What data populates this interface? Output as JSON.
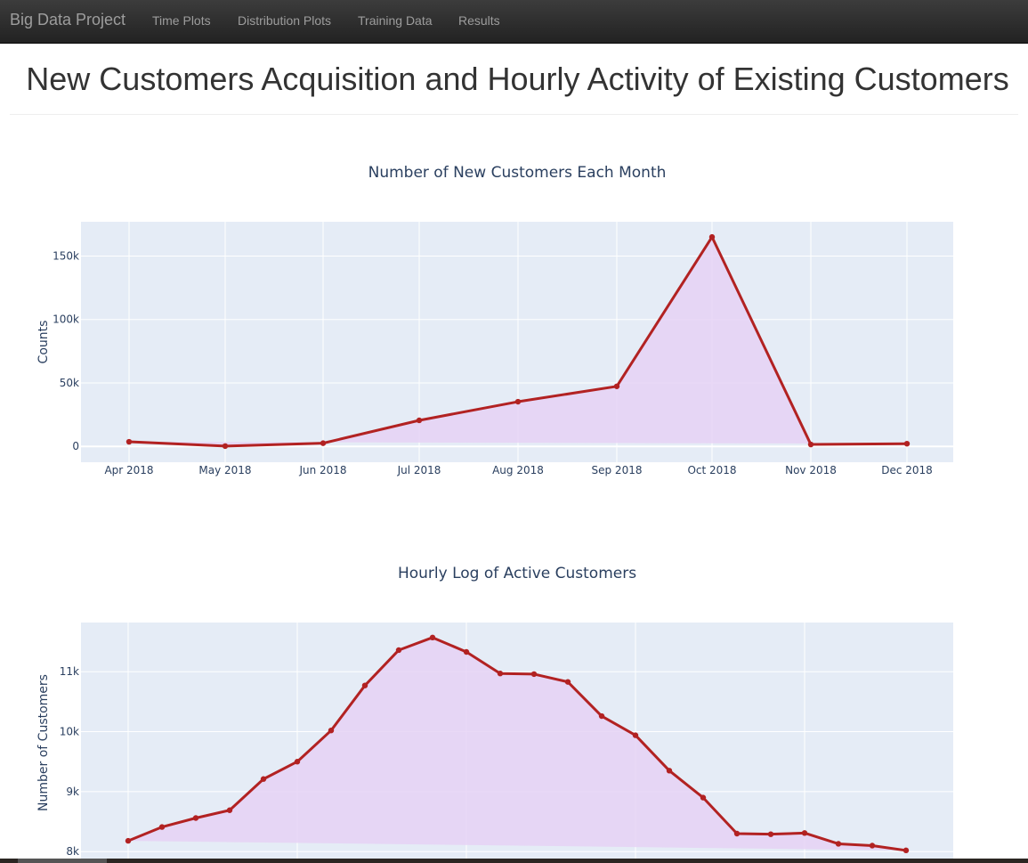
{
  "navbar": {
    "brand": "Big Data Project",
    "items": [
      "Time Plots",
      "Distribution Plots",
      "Training Data",
      "Results"
    ]
  },
  "page": {
    "title": "New Customers Acquisition and Hourly Activity of Existing Customers"
  },
  "colors": {
    "line": "#b22222",
    "fill": "#e6d2f5",
    "plot_bg": "#e5ecf6",
    "grid": "#ffffff",
    "text": "#2a3f5f"
  },
  "chart_data": [
    {
      "type": "area",
      "title": "Number of New Customers Each Month",
      "xlabel": "",
      "ylabel": "Counts",
      "categories": [
        "Apr 2018",
        "May 2018",
        "Jun 2018",
        "Jul 2018",
        "Aug 2018",
        "Sep 2018",
        "Oct 2018",
        "Nov 2018",
        "Dec 2018"
      ],
      "values": [
        3600,
        200,
        2500,
        20500,
        35200,
        47300,
        165000,
        1500,
        2100
      ],
      "yticks": [
        0,
        50000,
        100000,
        150000
      ],
      "ytick_labels": [
        "0",
        "50k",
        "100k",
        "150k"
      ],
      "ylim": [
        -12500,
        177000
      ],
      "grid": true
    },
    {
      "type": "area",
      "title": "Hourly Log of Active Customers",
      "xlabel": "",
      "ylabel": "Number of Customers",
      "values": [
        8180,
        8410,
        8560,
        8690,
        9210,
        9500,
        10020,
        10770,
        11360,
        11570,
        11330,
        10970,
        10960,
        10830,
        10260,
        9940,
        9350,
        8900,
        8300,
        8290,
        8310,
        8130,
        8100,
        8020
      ],
      "yticks": [
        8000,
        9000,
        10000,
        11000
      ],
      "ytick_labels": [
        "8k",
        "9k",
        "10k",
        "11k"
      ],
      "ylim": [
        7810,
        11820
      ],
      "grid": true
    }
  ]
}
